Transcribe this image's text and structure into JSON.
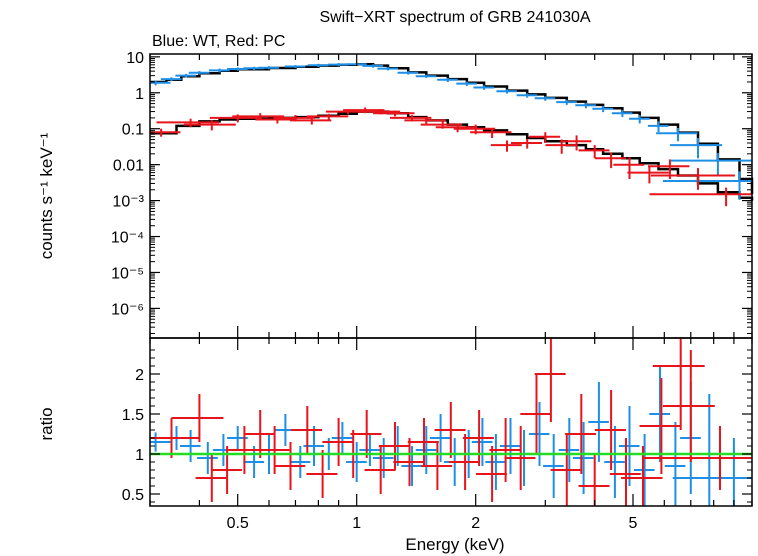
{
  "chart_data": {
    "type": "scatter",
    "title": "Swift−XRT spectrum of GRB 241030A",
    "subtitle": "Blue: WT, Red: PC",
    "xlabel": "Energy (keV)",
    "x_scale": "log",
    "xlim": [
      0.3,
      10
    ],
    "x_ticks": [
      {
        "value": 0.5,
        "label": "0.5"
      },
      {
        "value": 1,
        "label": "1"
      },
      {
        "value": 2,
        "label": "2"
      },
      {
        "value": 5,
        "label": "5"
      }
    ],
    "colors": {
      "wt": "#1e8fe6",
      "pc": "#e8141c",
      "model": "#000000",
      "unity": "#22dd22"
    },
    "top_panel": {
      "ylabel": "counts s⁻¹ keV⁻¹",
      "y_scale": "log",
      "ylim": [
        1.5e-07,
        12
      ],
      "y_ticks": [
        {
          "value": 10,
          "label": "10"
        },
        {
          "value": 1,
          "label": "1"
        },
        {
          "value": 0.1,
          "label": "0.1"
        },
        {
          "value": 0.01,
          "label": "0.01"
        },
        {
          "value": 0.001,
          "label": "10⁻³"
        },
        {
          "value": 0.0001,
          "label": "10⁻⁴"
        },
        {
          "value": 1e-05,
          "label": "10⁻⁵"
        },
        {
          "value": 1e-06,
          "label": "10⁻⁶"
        }
      ],
      "series": [
        {
          "name": "WT",
          "points": [
            [
              0.31,
              1.9,
              0.015,
              0.3
            ],
            [
              0.34,
              2.4,
              0.01,
              0.3
            ],
            [
              0.37,
              3.0,
              0.01,
              0.35
            ],
            [
              0.4,
              3.6,
              0.01,
              0.4
            ],
            [
              0.45,
              4.2,
              0.01,
              0.5
            ],
            [
              0.5,
              4.6,
              0.01,
              0.5
            ],
            [
              0.55,
              4.8,
              0.01,
              0.5
            ],
            [
              0.6,
              5.0,
              0.01,
              0.5
            ],
            [
              0.7,
              5.4,
              0.01,
              0.5
            ],
            [
              0.8,
              5.8,
              0.01,
              0.6
            ],
            [
              0.9,
              6.1,
              0.01,
              0.6
            ],
            [
              1.0,
              6.2,
              0.01,
              0.6
            ],
            [
              1.1,
              5.6,
              0.01,
              0.6
            ],
            [
              1.2,
              4.7,
              0.01,
              0.5
            ],
            [
              1.35,
              3.6,
              0.01,
              0.4
            ],
            [
              1.5,
              2.9,
              0.01,
              0.3
            ],
            [
              1.7,
              2.3,
              0.01,
              0.3
            ],
            [
              1.9,
              1.8,
              0.01,
              0.25
            ],
            [
              2.1,
              1.4,
              0.01,
              0.2
            ],
            [
              2.4,
              1.1,
              0.01,
              0.15
            ],
            [
              2.7,
              0.85,
              0.01,
              0.12
            ],
            [
              3.0,
              0.7,
              0.01,
              0.1
            ],
            [
              3.4,
              0.55,
              0.01,
              0.09
            ],
            [
              3.8,
              0.45,
              0.01,
              0.08
            ],
            [
              4.2,
              0.36,
              0.01,
              0.07
            ],
            [
              4.7,
              0.27,
              0.01,
              0.06
            ],
            [
              5.2,
              0.19,
              0.01,
              0.05
            ],
            [
              5.8,
              0.12,
              0.01,
              0.04
            ],
            [
              6.5,
              0.075,
              0.02,
              0.03
            ],
            [
              7.3,
              0.035,
              0.025,
              0.02
            ],
            [
              8.2,
              0.013,
              0.04,
              0.008
            ],
            [
              9.3,
              0.0035,
              0.06,
              0.003
            ]
          ]
        },
        {
          "name": "PC",
          "points": [
            [
              0.32,
              0.08,
              0.02,
              0.02
            ],
            [
              0.38,
              0.15,
              0.03,
              0.04
            ],
            [
              0.43,
              0.13,
              0.025,
              0.04
            ],
            [
              0.5,
              0.2,
              0.025,
              0.05
            ],
            [
              0.57,
              0.22,
              0.025,
              0.05
            ],
            [
              0.63,
              0.18,
              0.02,
              0.04
            ],
            [
              0.7,
              0.2,
              0.02,
              0.04
            ],
            [
              0.77,
              0.17,
              0.02,
              0.04
            ],
            [
              0.85,
              0.22,
              0.02,
              0.04
            ],
            [
              0.95,
              0.3,
              0.02,
              0.05
            ],
            [
              1.05,
              0.33,
              0.02,
              0.06
            ],
            [
              1.15,
              0.3,
              0.02,
              0.05
            ],
            [
              1.25,
              0.27,
              0.02,
              0.05
            ],
            [
              1.38,
              0.2,
              0.02,
              0.04
            ],
            [
              1.5,
              0.17,
              0.02,
              0.04
            ],
            [
              1.65,
              0.13,
              0.02,
              0.03
            ],
            [
              1.8,
              0.11,
              0.02,
              0.03
            ],
            [
              2.0,
              0.1,
              0.02,
              0.03
            ],
            [
              2.2,
              0.08,
              0.02,
              0.025
            ],
            [
              2.4,
              0.035,
              0.015,
              0.012
            ],
            [
              2.7,
              0.04,
              0.015,
              0.012
            ],
            [
              3.0,
              0.06,
              0.015,
              0.02
            ],
            [
              3.3,
              0.035,
              0.015,
              0.015
            ],
            [
              3.6,
              0.045,
              0.015,
              0.02
            ],
            [
              4.0,
              0.025,
              0.015,
              0.01
            ],
            [
              4.4,
              0.015,
              0.015,
              0.007
            ],
            [
              4.9,
              0.01,
              0.015,
              0.006
            ],
            [
              5.5,
              0.006,
              0.02,
              0.003
            ],
            [
              6.2,
              0.009,
              0.02,
              0.005
            ],
            [
              7.3,
              0.005,
              0.04,
              0.003
            ],
            [
              8.6,
              0.0015,
              0.06,
              0.0008
            ]
          ]
        }
      ],
      "models": [
        {
          "name": "WT model",
          "x": [
            0.3,
            0.33,
            0.36,
            0.4,
            0.45,
            0.5,
            0.6,
            0.7,
            0.8,
            0.9,
            1.0,
            1.1,
            1.2,
            1.35,
            1.5,
            1.7,
            1.9,
            2.1,
            2.4,
            2.7,
            3.0,
            3.4,
            3.8,
            4.2,
            4.7,
            5.2,
            5.8,
            6.5,
            7.3,
            8.2,
            9.3,
            10.0
          ],
          "y": [
            2.0,
            2.3,
            2.9,
            3.5,
            4.1,
            4.5,
            4.9,
            5.3,
            5.7,
            6.0,
            6.2,
            5.7,
            4.8,
            3.7,
            3.0,
            2.4,
            1.9,
            1.5,
            1.15,
            0.9,
            0.72,
            0.57,
            0.46,
            0.37,
            0.28,
            0.2,
            0.13,
            0.078,
            0.038,
            0.014,
            0.004,
            0.0015
          ]
        },
        {
          "name": "PC model",
          "x": [
            0.3,
            0.35,
            0.4,
            0.45,
            0.5,
            0.6,
            0.7,
            0.8,
            0.9,
            1.0,
            1.1,
            1.2,
            1.35,
            1.5,
            1.7,
            1.9,
            2.1,
            2.4,
            2.7,
            3.0,
            3.4,
            3.8,
            4.2,
            4.7,
            5.2,
            5.8,
            6.5,
            7.3,
            8.2,
            9.3,
            10.0
          ],
          "y": [
            0.075,
            0.12,
            0.16,
            0.18,
            0.19,
            0.2,
            0.21,
            0.23,
            0.26,
            0.3,
            0.3,
            0.27,
            0.21,
            0.17,
            0.13,
            0.11,
            0.09,
            0.07,
            0.055,
            0.045,
            0.035,
            0.027,
            0.02,
            0.015,
            0.011,
            0.0075,
            0.005,
            0.003,
            0.0017,
            0.0012,
            0.001
          ]
        }
      ]
    },
    "bottom_panel": {
      "ylabel": "ratio",
      "ylim": [
        0.35,
        2.45
      ],
      "y_ticks": [
        {
          "value": 0.5,
          "label": "0.5"
        },
        {
          "value": 1,
          "label": "1"
        },
        {
          "value": 1.5,
          "label": "1.5"
        },
        {
          "value": 2,
          "label": "2"
        }
      ],
      "reference_line": 1,
      "series": [
        {
          "name": "WT",
          "points": [
            [
              0.31,
              1.15,
              0.015,
              0.12
            ],
            [
              0.35,
              1.2,
              0.01,
              0.15
            ],
            [
              0.38,
              1.1,
              0.01,
              0.2
            ],
            [
              0.42,
              0.95,
              0.01,
              0.2
            ],
            [
              0.46,
              1.05,
              0.01,
              0.2
            ],
            [
              0.5,
              1.2,
              0.01,
              0.15
            ],
            [
              0.55,
              0.9,
              0.01,
              0.2
            ],
            [
              0.6,
              1.0,
              0.01,
              0.25
            ],
            [
              0.66,
              1.3,
              0.01,
              0.2
            ],
            [
              0.72,
              0.9,
              0.01,
              0.2
            ],
            [
              0.78,
              1.1,
              0.01,
              0.25
            ],
            [
              0.85,
              1.0,
              0.01,
              0.2
            ],
            [
              0.92,
              1.2,
              0.01,
              0.2
            ],
            [
              1.0,
              0.9,
              0.01,
              0.25
            ],
            [
              1.08,
              1.05,
              0.01,
              0.2
            ],
            [
              1.17,
              0.95,
              0.01,
              0.25
            ],
            [
              1.27,
              1.1,
              0.01,
              0.25
            ],
            [
              1.38,
              0.85,
              0.01,
              0.25
            ],
            [
              1.5,
              1.05,
              0.01,
              0.3
            ],
            [
              1.63,
              1.2,
              0.01,
              0.3
            ],
            [
              1.77,
              0.9,
              0.01,
              0.3
            ],
            [
              1.92,
              1.0,
              0.01,
              0.3
            ],
            [
              2.08,
              1.15,
              0.01,
              0.3
            ],
            [
              2.25,
              0.9,
              0.01,
              0.35
            ],
            [
              2.45,
              1.1,
              0.01,
              0.35
            ],
            [
              2.65,
              0.95,
              0.01,
              0.35
            ],
            [
              2.9,
              1.25,
              0.01,
              0.4
            ],
            [
              3.15,
              0.85,
              0.01,
              0.4
            ],
            [
              3.45,
              1.05,
              0.01,
              0.4
            ],
            [
              3.75,
              0.95,
              0.01,
              0.45
            ],
            [
              4.1,
              1.4,
              0.01,
              0.5
            ],
            [
              4.5,
              0.9,
              0.01,
              0.45
            ],
            [
              4.9,
              1.1,
              0.01,
              0.5
            ],
            [
              5.35,
              0.8,
              0.01,
              0.45
            ],
            [
              5.85,
              1.5,
              0.01,
              0.6
            ],
            [
              6.4,
              0.85,
              0.01,
              0.55
            ],
            [
              7.0,
              1.2,
              0.01,
              0.7
            ],
            [
              7.8,
              0.95,
              0.01,
              0.8
            ],
            [
              9.0,
              0.7,
              0.05,
              0.5
            ]
          ]
        },
        {
          "name": "PC",
          "points": [
            [
              0.34,
              1.2,
              0.03,
              0.25
            ],
            [
              0.4,
              1.45,
              0.025,
              0.3
            ],
            [
              0.43,
              0.7,
              0.015,
              0.3
            ],
            [
              0.47,
              0.8,
              0.015,
              0.3
            ],
            [
              0.52,
              1.05,
              0.015,
              0.3
            ],
            [
              0.57,
              1.25,
              0.015,
              0.3
            ],
            [
              0.62,
              1.05,
              0.015,
              0.3
            ],
            [
              0.68,
              0.85,
              0.015,
              0.3
            ],
            [
              0.75,
              1.3,
              0.015,
              0.3
            ],
            [
              0.82,
              0.75,
              0.015,
              0.3
            ],
            [
              0.9,
              1.15,
              0.015,
              0.3
            ],
            [
              0.98,
              1.0,
              0.015,
              0.3
            ],
            [
              1.06,
              1.25,
              0.015,
              0.3
            ],
            [
              1.15,
              0.8,
              0.015,
              0.3
            ],
            [
              1.25,
              1.1,
              0.015,
              0.3
            ],
            [
              1.36,
              0.9,
              0.015,
              0.3
            ],
            [
              1.48,
              1.15,
              0.015,
              0.3
            ],
            [
              1.6,
              0.85,
              0.015,
              0.3
            ],
            [
              1.73,
              1.3,
              0.015,
              0.35
            ],
            [
              1.88,
              0.9,
              0.015,
              0.35
            ],
            [
              2.04,
              1.2,
              0.015,
              0.35
            ],
            [
              2.2,
              0.75,
              0.015,
              0.35
            ],
            [
              2.38,
              1.05,
              0.015,
              0.4
            ],
            [
              2.6,
              0.95,
              0.015,
              0.4
            ],
            [
              2.85,
              1.5,
              0.015,
              0.5
            ],
            [
              3.1,
              2.0,
              0.015,
              0.6
            ],
            [
              3.4,
              0.8,
              0.015,
              0.45
            ],
            [
              3.7,
              1.25,
              0.015,
              0.5
            ],
            [
              4.0,
              0.6,
              0.015,
              0.4
            ],
            [
              4.4,
              1.3,
              0.015,
              0.5
            ],
            [
              4.8,
              0.75,
              0.015,
              0.45
            ],
            [
              5.3,
              0.7,
              0.02,
              0.4
            ],
            [
              5.9,
              1.35,
              0.02,
              0.6
            ],
            [
              6.6,
              2.1,
              0.025,
              0.8
            ],
            [
              7.0,
              1.6,
              0.025,
              0.7
            ],
            [
              8.3,
              0.95,
              0.06,
              0.4
            ]
          ]
        }
      ]
    }
  }
}
